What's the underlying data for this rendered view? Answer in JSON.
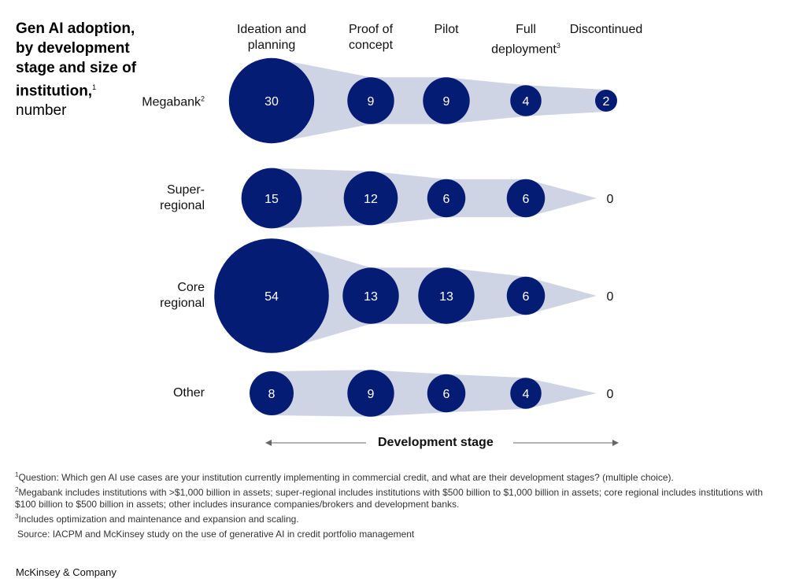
{
  "title": {
    "bold": "Gen AI adoption, by development stage and size of institution,",
    "bold_sup": "1",
    "subtitle": "number"
  },
  "colors": {
    "bubble": "#051c75",
    "band": "#cfd4e4",
    "text": "#ffffff"
  },
  "chart_data": {
    "type": "bubble-funnel",
    "xlabel": "Development stage",
    "columns": [
      {
        "label": "Ideation and planning",
        "sup": ""
      },
      {
        "label": "Proof of concept",
        "sup": ""
      },
      {
        "label": "Pilot",
        "sup": ""
      },
      {
        "label": "Full deployment",
        "sup": "3"
      },
      {
        "label": "Discontinued",
        "sup": ""
      }
    ],
    "rows": [
      {
        "label": "Megabank",
        "sup": "2",
        "values": [
          30,
          9,
          9,
          4,
          2
        ]
      },
      {
        "label": "Super-regional",
        "sup": "",
        "values": [
          15,
          12,
          6,
          6,
          0
        ]
      },
      {
        "label": "Core regional",
        "sup": "",
        "values": [
          54,
          13,
          13,
          6,
          0
        ]
      },
      {
        "label": "Other",
        "sup": "",
        "values": [
          8,
          9,
          6,
          4,
          0
        ]
      }
    ]
  },
  "footnotes": [
    {
      "sup": "1",
      "text": "Question: Which gen AI use cases are your institution currently implementing in commercial credit, and what are their development stages? (multiple choice)."
    },
    {
      "sup": "2",
      "text": "Megabank includes institutions with >$1,000 billion in assets; super-regional includes institutions with $500 billion to $1,000 billion in assets; core regional includes institutions with $100 billion to $500 billion in assets; other includes insurance companies/brokers and development banks."
    },
    {
      "sup": "3",
      "text": "Includes optimization and maintenance and expansion and scaling."
    },
    {
      "sup": "",
      "text": "Source: IACPM and McKinsey study on the use of generative AI in credit portfolio management"
    }
  ],
  "brand": "McKinsey & Company"
}
